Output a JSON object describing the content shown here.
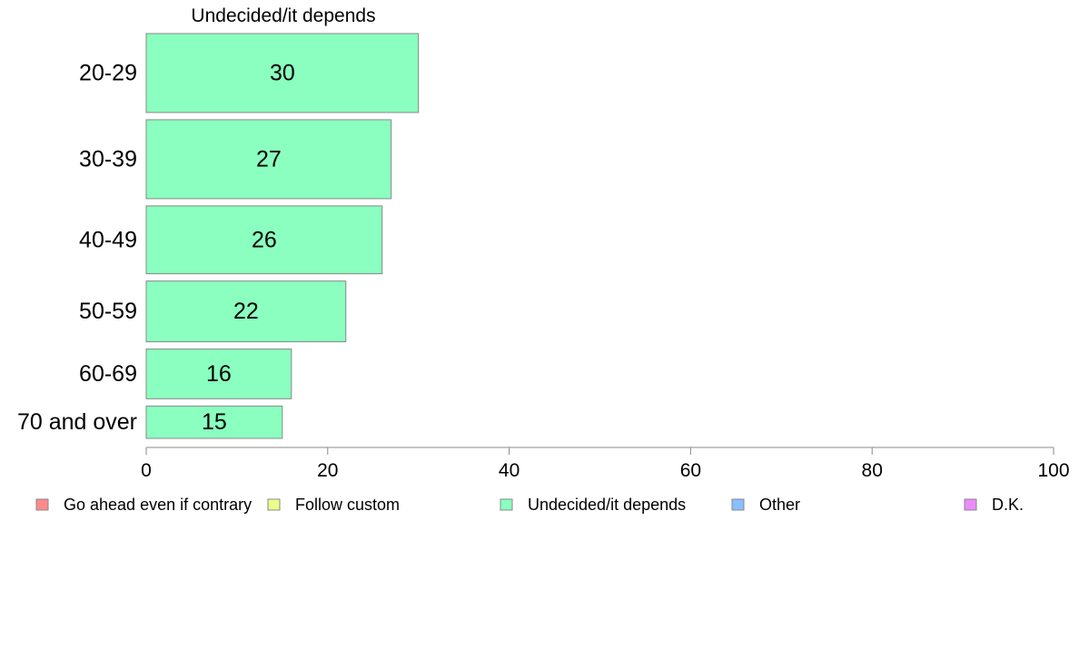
{
  "chart_data": {
    "type": "bar",
    "orientation": "horizontal",
    "panel_title": "Undecided/it depends",
    "categories": [
      "20-29",
      "30-39",
      "40-49",
      "50-59",
      "60-69",
      "70 and over"
    ],
    "series": [
      {
        "name": "Undecided/it depends",
        "color": "#8affbf",
        "values": [
          30,
          27,
          26,
          22,
          16,
          15
        ]
      }
    ],
    "bar_weights": [
      1.0,
      1.0,
      0.86,
      0.77,
      0.63,
      0.41
    ],
    "xlim": [
      0,
      100
    ],
    "xticks": [
      0,
      20,
      40,
      60,
      80,
      100
    ],
    "grid": false,
    "legend": {
      "position": "bottom",
      "items": [
        {
          "label": "Go ahead even if contrary",
          "color": "#ff8a8a"
        },
        {
          "label": "Follow custom",
          "color": "#ecff8a"
        },
        {
          "label": "Undecided/it depends",
          "color": "#8affbf"
        },
        {
          "label": "Other",
          "color": "#8abfff"
        },
        {
          "label": "D.K.",
          "color": "#ec8aff"
        }
      ]
    }
  }
}
